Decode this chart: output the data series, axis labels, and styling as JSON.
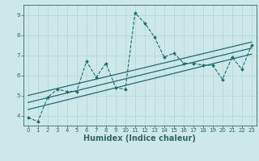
{
  "xlabel": "Humidex (Indice chaleur)",
  "bg_color": "#cce8e8",
  "line_color": "#1a6e6e",
  "x_data": [
    0,
    1,
    2,
    3,
    4,
    5,
    6,
    7,
    8,
    9,
    10,
    11,
    12,
    13,
    14,
    15,
    16,
    17,
    18,
    19,
    20,
    21,
    22,
    23
  ],
  "y_data": [
    3.9,
    3.7,
    4.9,
    5.3,
    5.2,
    5.2,
    6.7,
    5.9,
    6.6,
    5.4,
    5.3,
    9.1,
    8.6,
    7.9,
    6.9,
    7.1,
    6.6,
    6.6,
    6.5,
    6.5,
    5.8,
    6.9,
    6.3,
    7.5
  ],
  "reg_lines": [
    {
      "x_start": 0,
      "y_start": 4.65,
      "x_end": 23,
      "y_end": 7.35
    },
    {
      "x_start": 0,
      "y_start": 4.3,
      "x_end": 23,
      "y_end": 7.05
    },
    {
      "x_start": 0,
      "y_start": 5.0,
      "x_end": 23,
      "y_end": 7.65
    }
  ],
  "xlim": [
    -0.5,
    23.5
  ],
  "ylim": [
    3.5,
    9.5
  ],
  "yticks": [
    4,
    5,
    6,
    7,
    8,
    9
  ],
  "xtick_labels": [
    "0",
    "1",
    "2",
    "3",
    "4",
    "5",
    "6",
    "7",
    "8",
    "9",
    "10",
    "11",
    "12",
    "13",
    "14",
    "15",
    "16",
    "17",
    "18",
    "19",
    "20",
    "21",
    "22",
    "23"
  ],
  "grid_color": "#b8d8d8",
  "tick_color": "#336666",
  "label_fontsize": 6.5,
  "tick_fontsize": 5.0,
  "xlabel_fontsize": 7.0
}
